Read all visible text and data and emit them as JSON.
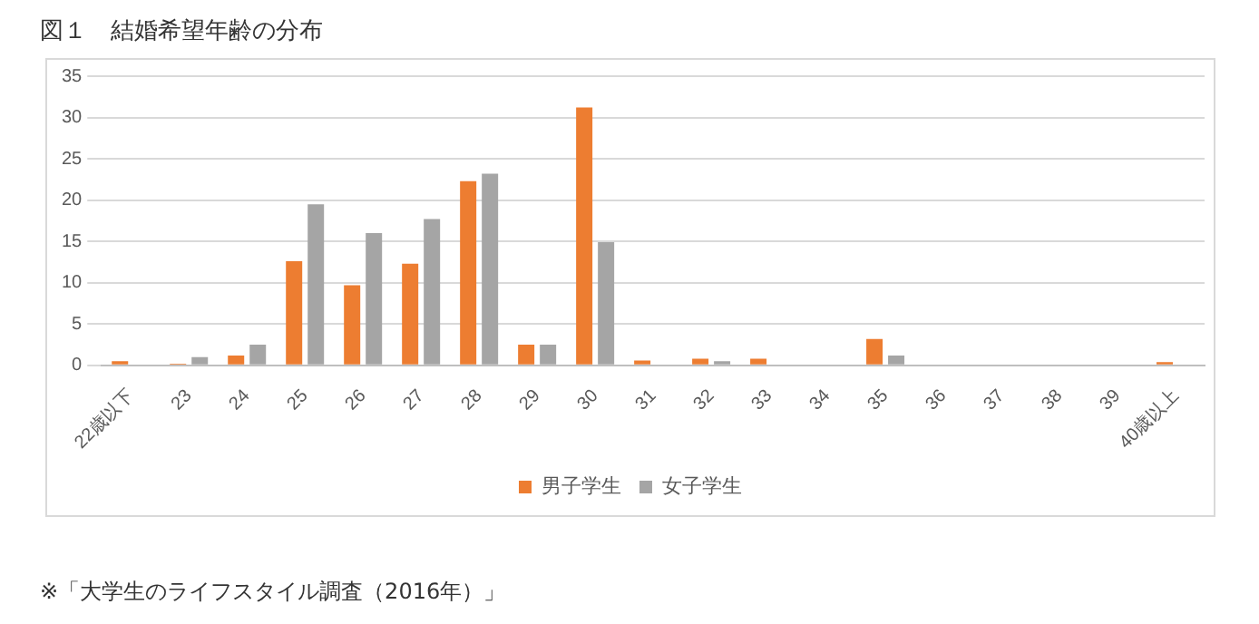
{
  "chart_data": {
    "type": "bar",
    "title": "図１　結婚希望年齢の分布",
    "categories": [
      "22歳以下",
      "23",
      "24",
      "25",
      "26",
      "27",
      "28",
      "29",
      "30",
      "31",
      "32",
      "33",
      "34",
      "35",
      "36",
      "37",
      "38",
      "39",
      "40歳以上"
    ],
    "series": [
      {
        "name": "男子学生",
        "color": "#ed7d31",
        "values": [
          0.5,
          0.2,
          1.2,
          12.6,
          9.7,
          12.3,
          22.3,
          2.5,
          31.2,
          0.6,
          0.8,
          0.8,
          0,
          3.2,
          0,
          0,
          0,
          0,
          0.4
        ]
      },
      {
        "name": "女子学生",
        "color": "#a5a5a5",
        "values": [
          0,
          1.0,
          2.5,
          19.5,
          16,
          17.7,
          23.2,
          2.5,
          14.9,
          0,
          0.5,
          0,
          0,
          1.2,
          0,
          0,
          0,
          0,
          0
        ]
      }
    ],
    "ylim": [
      0,
      35
    ],
    "yticks": [
      0,
      5,
      10,
      15,
      20,
      25,
      30,
      35
    ],
    "grid": "y",
    "legend": "bottom",
    "annotations": [
      "※「大学生のライフスタイル調査（2016年）」"
    ]
  }
}
